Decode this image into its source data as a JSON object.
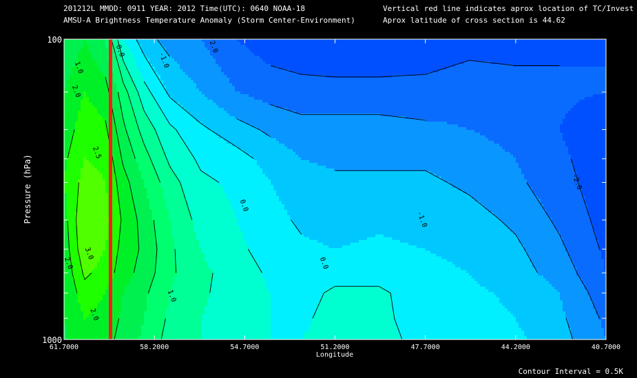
{
  "header": {
    "line1_left": "201212L  MMDD: 0911 YEAR: 2012 Time(UTC): 0640 NOAA-18",
    "line2_left": "AMSU-A Brightness Temperature Anomaly (Storm Center-Environment)",
    "line1_right": "Vertical red line indicates aprox location of TC/Invest",
    "line2_right": "Aprox latitude of cross section is 44.62"
  },
  "footer": {
    "contour_interval": "Contour Interval = 0.5K"
  },
  "chart_data": {
    "type": "heatmap",
    "title": "AMSU-A Brightness Temperature Anomaly (Storm Center-Environment)",
    "xlabel": "Longitude",
    "ylabel": "Pressure (hPa)",
    "x_tick_labels": [
      "61.7000",
      "58.2000",
      "54.7000",
      "51.2000",
      "47.7000",
      "44.2000",
      "40.7000"
    ],
    "x_ticks": [
      61.7,
      58.2,
      54.7,
      51.2,
      47.7,
      44.2,
      40.7
    ],
    "xlim": [
      61.7,
      40.7
    ],
    "y_tick_labels": [
      "100",
      "1000"
    ],
    "ylim": [
      1000,
      100
    ],
    "y_scale": "log",
    "y_minor_ticks": [
      150,
      200,
      250,
      300,
      400,
      500,
      600,
      700,
      850
    ],
    "tc_longitude": 59.9,
    "contour_interval": 0.5,
    "color_scale": [
      {
        "level": -3.0,
        "color": "#0036ff"
      },
      {
        "level": -2.5,
        "color": "#0050ff"
      },
      {
        "level": -2.0,
        "color": "#0a6cff"
      },
      {
        "level": -1.5,
        "color": "#0a96ff"
      },
      {
        "level": -1.0,
        "color": "#00c8ff"
      },
      {
        "level": -0.5,
        "color": "#00f0ff"
      },
      {
        "level": 0.0,
        "color": "#00ffd0"
      },
      {
        "level": 0.5,
        "color": "#00ff96"
      },
      {
        "level": 1.0,
        "color": "#00ff6e"
      },
      {
        "level": 1.5,
        "color": "#00f050"
      },
      {
        "level": 2.0,
        "color": "#00f028"
      },
      {
        "level": 2.5,
        "color": "#1eff00"
      },
      {
        "level": 3.0,
        "color": "#50ff00"
      },
      {
        "level": 3.5,
        "color": "#78ff00"
      }
    ],
    "grid": {
      "lons": [
        61.7,
        60.9,
        60.1,
        59.4,
        58.6,
        57.6,
        56.4,
        55.0,
        53.7,
        52.5,
        51.2,
        49.5,
        47.7,
        46.0,
        44.2,
        42.5,
        40.7
      ],
      "pressures": [
        100,
        150,
        200,
        250,
        300,
        400,
        500,
        600,
        700,
        850,
        1000
      ],
      "values": [
        [
          1.5,
          2.0,
          1.5,
          0.0,
          -0.8,
          -1.2,
          -1.5,
          -2.0,
          -2.3,
          -2.4,
          -2.5,
          -2.5,
          -2.4,
          -2.2,
          -2.2,
          -2.1,
          -2.0
        ],
        [
          2.0,
          2.5,
          2.2,
          1.2,
          0.2,
          -0.6,
          -1.0,
          -1.5,
          -1.7,
          -1.8,
          -1.8,
          -1.8,
          -1.8,
          -1.7,
          -1.8,
          -1.9,
          -2.0
        ],
        [
          2.2,
          2.8,
          2.6,
          1.6,
          0.8,
          0.1,
          -0.4,
          -0.8,
          -1.1,
          -1.3,
          -1.3,
          -1.3,
          -1.4,
          -1.5,
          -1.7,
          -2.0,
          -2.4
        ],
        [
          2.4,
          3.0,
          2.9,
          1.9,
          1.2,
          0.4,
          -0.1,
          -0.3,
          -0.7,
          -1.0,
          -1.1,
          -1.1,
          -1.1,
          -1.2,
          -1.5,
          -1.9,
          -2.3
        ],
        [
          2.5,
          3.2,
          3.0,
          2.2,
          1.5,
          0.7,
          0.1,
          -0.1,
          -0.5,
          -0.8,
          -0.9,
          -0.9,
          -0.9,
          -1.1,
          -1.4,
          -1.8,
          -2.3
        ],
        [
          2.3,
          3.5,
          3.2,
          2.4,
          1.8,
          1.0,
          0.3,
          0.0,
          -0.3,
          -0.6,
          -0.7,
          -0.6,
          -0.7,
          -0.8,
          -1.1,
          -1.6,
          -2.2
        ],
        [
          2.2,
          3.4,
          3.0,
          2.3,
          1.9,
          1.1,
          0.5,
          0.1,
          -0.2,
          -0.4,
          -0.5,
          -0.4,
          -0.5,
          -0.6,
          -0.9,
          -1.4,
          -2.1
        ],
        [
          2.1,
          3.1,
          2.8,
          2.2,
          1.8,
          1.1,
          0.6,
          0.3,
          -0.1,
          -0.3,
          -0.2,
          -0.2,
          -0.4,
          -0.5,
          -0.8,
          -1.2,
          -2.0
        ],
        [
          2.0,
          2.8,
          2.5,
          2.0,
          1.6,
          1.0,
          0.6,
          0.2,
          0.0,
          -0.2,
          0.1,
          0.1,
          -0.3,
          -0.4,
          -0.6,
          -1.0,
          -1.8
        ],
        [
          2.0,
          2.5,
          2.3,
          1.9,
          1.5,
          0.9,
          0.5,
          0.2,
          0.0,
          -0.1,
          0.2,
          0.1,
          -0.2,
          -0.3,
          -0.5,
          -0.9,
          -1.6
        ],
        [
          1.9,
          2.4,
          2.2,
          1.8,
          1.4,
          0.8,
          0.5,
          0.2,
          0.0,
          0.0,
          0.2,
          0.1,
          -0.1,
          -0.2,
          -0.4,
          -0.8,
          -1.5
        ]
      ]
    },
    "contour_labels": [
      {
        "text": "1.0",
        "lon": 61.2,
        "p": 125
      },
      {
        "text": "2.0",
        "lon": 61.3,
        "p": 150
      },
      {
        "text": "0.0",
        "lon": 59.6,
        "p": 110
      },
      {
        "text": "-1.0",
        "lon": 57.9,
        "p": 118
      },
      {
        "text": "-2.0",
        "lon": 56.0,
        "p": 105
      },
      {
        "text": "2.5",
        "lon": 60.5,
        "p": 240
      },
      {
        "text": "3.0",
        "lon": 60.8,
        "p": 520
      },
      {
        "text": "2.0",
        "lon": 61.6,
        "p": 560
      },
      {
        "text": "0.0",
        "lon": 54.8,
        "p": 360
      },
      {
        "text": "1.0",
        "lon": 57.6,
        "p": 720
      },
      {
        "text": "2.0",
        "lon": 60.6,
        "p": 830
      },
      {
        "text": "-1.0",
        "lon": 47.9,
        "p": 400
      },
      {
        "text": "0.0",
        "lon": 51.7,
        "p": 560
      },
      {
        "text": "-2.0",
        "lon": 41.9,
        "p": 300
      }
    ]
  }
}
